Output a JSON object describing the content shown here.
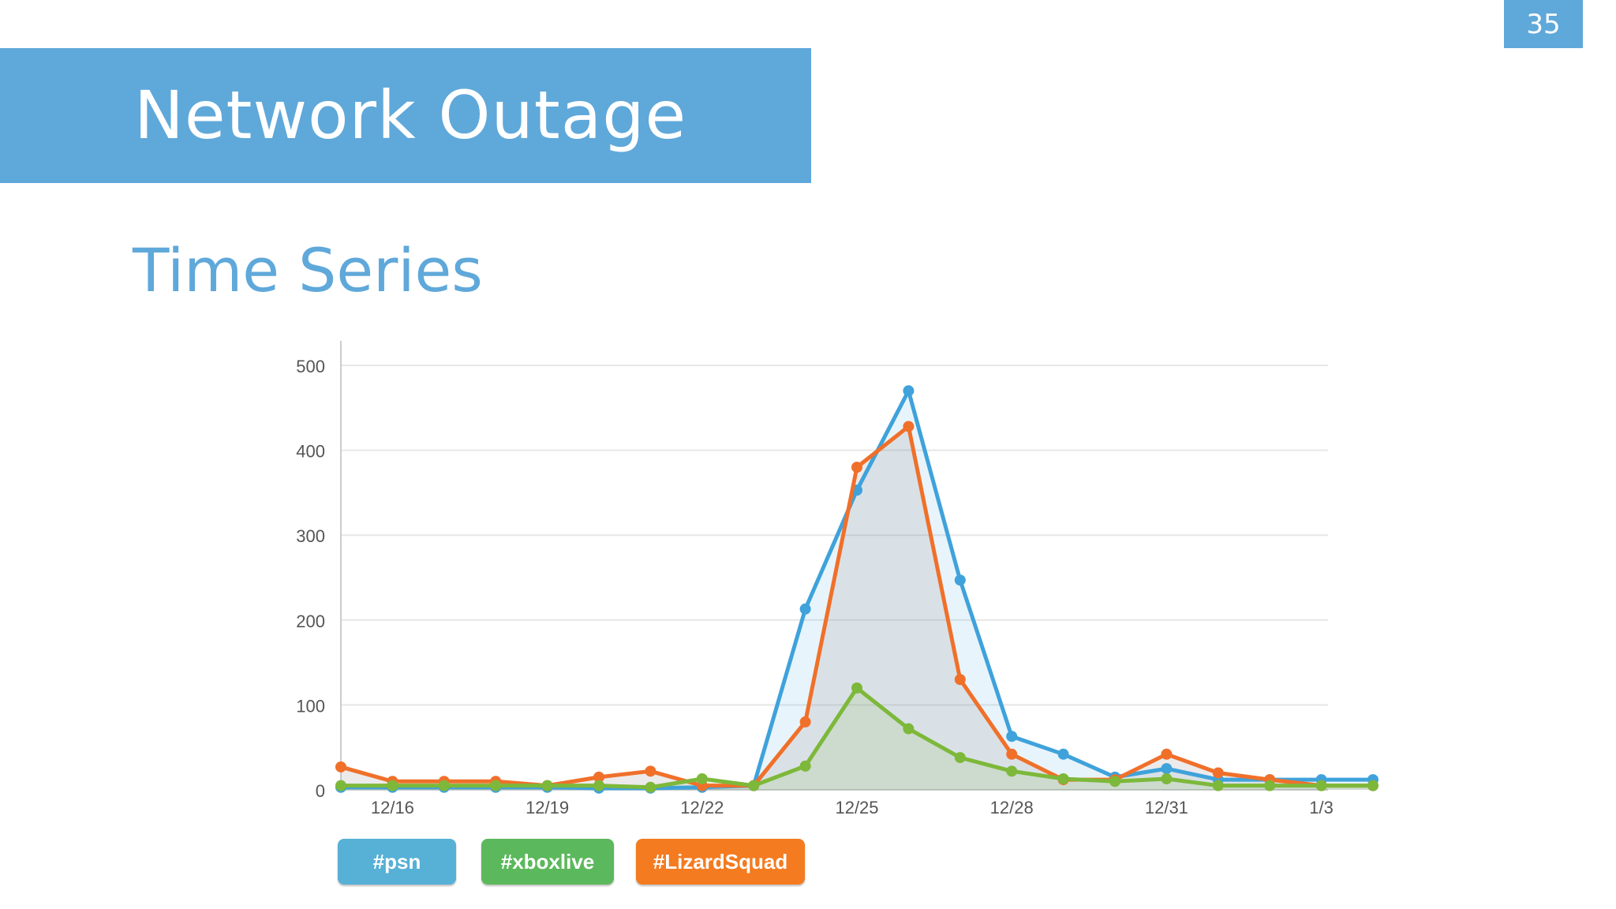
{
  "slide": {
    "page_number": "35",
    "title": "Network Outage",
    "subtitle": "Time Series"
  },
  "legend": [
    {
      "label": "#psn",
      "color": "#57b0d6"
    },
    {
      "label": "#xboxlive",
      "color": "#5cb85c"
    },
    {
      "label": "#LizardSquad",
      "color": "#f47b20"
    }
  ],
  "chart_data": {
    "type": "line",
    "title": "",
    "xlabel": "",
    "ylabel": "",
    "ylim": [
      0,
      500
    ],
    "yticks": [
      0,
      100,
      200,
      300,
      400,
      500
    ],
    "x": [
      "12/15",
      "12/16",
      "12/17",
      "12/18",
      "12/19",
      "12/20",
      "12/21",
      "12/22",
      "12/23",
      "12/24",
      "12/25",
      "12/26",
      "12/27",
      "12/28",
      "12/29",
      "12/30",
      "12/31",
      "1/1",
      "1/2",
      "1/3",
      "1/4"
    ],
    "xtick_labels": [
      "12/16",
      "12/19",
      "12/22",
      "12/25",
      "12/28",
      "12/31",
      "1/3"
    ],
    "grid": true,
    "legend_position": "bottom",
    "series": [
      {
        "name": "#psn",
        "color": "#3fa2db",
        "values": [
          3,
          3,
          3,
          3,
          3,
          2,
          2,
          3,
          5,
          213,
          353,
          470,
          247,
          63,
          42,
          15,
          25,
          12,
          12,
          12,
          12
        ]
      },
      {
        "name": "#LizardSquad",
        "color": "#f0702a",
        "values": [
          27,
          10,
          10,
          10,
          5,
          15,
          22,
          5,
          5,
          80,
          380,
          428,
          130,
          42,
          12,
          12,
          42,
          20,
          12,
          5,
          5
        ]
      },
      {
        "name": "#xboxlive",
        "color": "#7db83a",
        "values": [
          5,
          5,
          5,
          5,
          5,
          5,
          3,
          13,
          5,
          28,
          120,
          72,
          38,
          22,
          13,
          10,
          13,
          5,
          5,
          5,
          5
        ]
      }
    ]
  }
}
